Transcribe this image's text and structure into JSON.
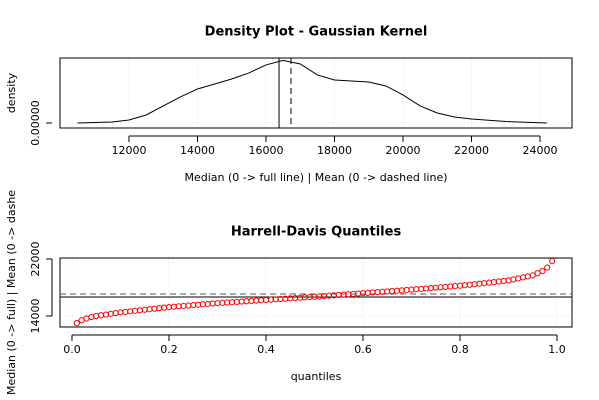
{
  "chart_data": [
    {
      "type": "line",
      "title": "Density Plot - Gaussian Kernel",
      "x_label": "Median (0 -> full line) | Mean (0 -> dashed line)",
      "y_label": "density",
      "x": [
        10500,
        11500,
        12000,
        12500,
        13000,
        13500,
        14000,
        14500,
        15000,
        15500,
        16000,
        16500,
        17000,
        17500,
        18000,
        18500,
        19000,
        19500,
        20000,
        20500,
        21000,
        21500,
        22000,
        23000,
        24200
      ],
      "values": [
        0,
        2.9e-06,
        8.8e-06,
        2.35e-05,
        5e-05,
        7.65e-05,
        0.0001,
        0.0001147,
        0.0001294,
        0.000147,
        0.0001706,
        0.000184,
        0.0001735,
        0.0001412,
        0.0001265,
        0.0001235,
        0.0001206,
        0.0001088,
        8.24e-05,
        5e-05,
        2.94e-05,
        1.76e-05,
        1.18e-05,
        4.4e-06,
        0
      ],
      "color": "#000000",
      "median": 16380,
      "mean": 16730,
      "xlim": [
        9985,
        24934
      ],
      "ylim": [
        -1.47e-05,
        0.000191
      ],
      "xticks": [
        12000,
        14000,
        16000,
        18000,
        20000,
        22000,
        24000
      ],
      "yticks": [
        {
          "value": 0,
          "label": "0.00000"
        }
      ],
      "grid": true
    },
    {
      "type": "scatter",
      "title": "Harrell-Davis Quantiles",
      "x_label": "quantiles",
      "y_label": "Median (0 -> full) | Mean (0 -> dashe",
      "x": [
        0.01,
        0.02,
        0.03,
        0.04,
        0.05,
        0.06,
        0.07,
        0.08,
        0.09,
        0.1,
        0.11,
        0.12,
        0.13,
        0.14,
        0.15,
        0.16,
        0.17,
        0.18,
        0.19,
        0.2,
        0.21,
        0.22,
        0.23,
        0.24,
        0.25,
        0.26,
        0.27,
        0.28,
        0.29,
        0.3,
        0.31,
        0.32,
        0.33,
        0.34,
        0.35,
        0.36,
        0.37,
        0.38,
        0.39,
        0.4,
        0.41,
        0.42,
        0.43,
        0.44,
        0.45,
        0.46,
        0.47,
        0.48,
        0.49,
        0.5,
        0.51,
        0.52,
        0.53,
        0.54,
        0.55,
        0.56,
        0.57,
        0.58,
        0.59,
        0.6,
        0.61,
        0.62,
        0.63,
        0.64,
        0.65,
        0.66,
        0.67,
        0.68,
        0.69,
        0.7,
        0.71,
        0.72,
        0.73,
        0.74,
        0.75,
        0.76,
        0.77,
        0.78,
        0.79,
        0.8,
        0.81,
        0.82,
        0.83,
        0.84,
        0.85,
        0.86,
        0.87,
        0.88,
        0.89,
        0.9,
        0.91,
        0.92,
        0.93,
        0.94,
        0.95,
        0.96,
        0.97,
        0.98,
        0.99
      ],
      "values": [
        13000,
        13400,
        13650,
        13850,
        14000,
        14100,
        14200,
        14300,
        14400,
        14500,
        14575,
        14650,
        14725,
        14800,
        14875,
        14950,
        15025,
        15100,
        15175,
        15250,
        15305,
        15360,
        15415,
        15470,
        15525,
        15580,
        15635,
        15690,
        15745,
        15800,
        15845,
        15890,
        15935,
        15980,
        16025,
        16070,
        16115,
        16160,
        16205,
        16250,
        16295,
        16340,
        16385,
        16430,
        16475,
        16520,
        16565,
        16610,
        16655,
        16700,
        16750,
        16800,
        16850,
        16900,
        16950,
        17000,
        17050,
        17100,
        17150,
        17200,
        17250,
        17300,
        17350,
        17400,
        17450,
        17500,
        17550,
        17600,
        17650,
        17700,
        17755,
        17810,
        17865,
        17920,
        17975,
        18030,
        18085,
        18140,
        18195,
        18250,
        18320,
        18390,
        18460,
        18530,
        18600,
        18680,
        18760,
        18840,
        18920,
        19000,
        19140,
        19280,
        19420,
        19560,
        19700,
        20000,
        20300,
        20800,
        21700
      ],
      "color": "#ff0000",
      "median": 16670,
      "mean": 17090,
      "xlim": [
        -0.0247,
        1.031
      ],
      "ylim": [
        12456,
        22140
      ],
      "xticks": [
        {
          "value": 0,
          "label": "0.0"
        },
        0.2,
        0.4,
        0.6,
        0.8,
        {
          "value": 1,
          "label": "1.0"
        }
      ],
      "yticks": [
        14000,
        22000
      ],
      "grid": true
    }
  ]
}
